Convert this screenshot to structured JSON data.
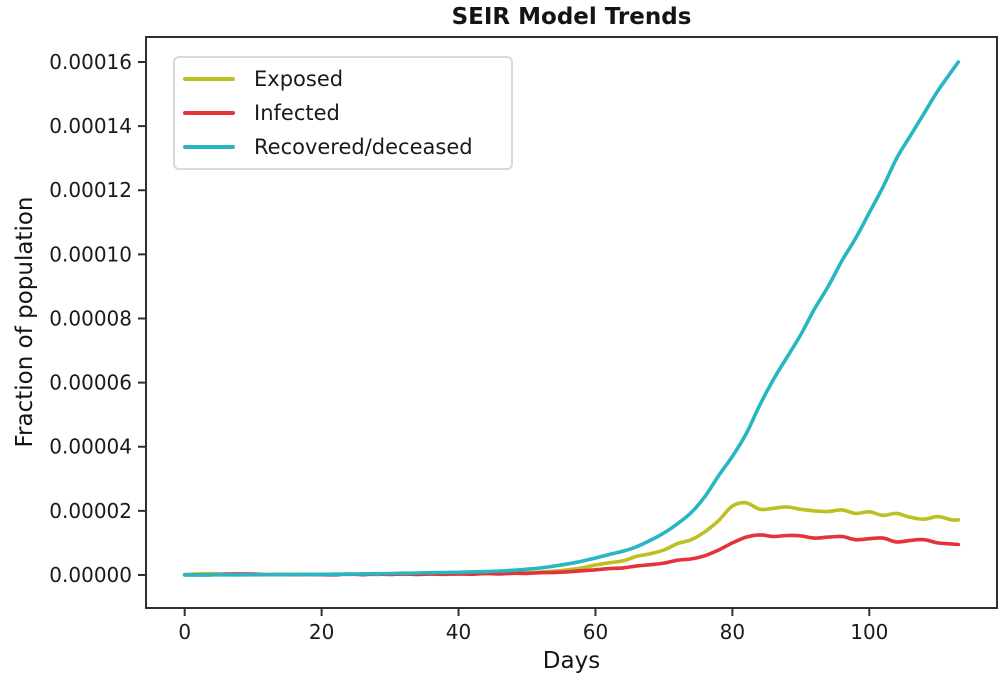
{
  "chart_data": {
    "type": "line",
    "title": "SEIR Model Trends",
    "xlabel": "Days",
    "ylabel": "Fraction of population",
    "grid": false,
    "legend_position": "upper left",
    "xlim": [
      -5.65,
      118.65
    ],
    "ylim": [
      -1.03e-05,
      0.0001678
    ],
    "xticks": [
      0,
      20,
      40,
      60,
      80,
      100
    ],
    "xtick_labels": [
      "0",
      "20",
      "40",
      "60",
      "80",
      "100"
    ],
    "yticks": [
      0,
      2e-05,
      4e-05,
      6e-05,
      8e-05,
      0.0001,
      0.00012,
      0.00014,
      0.00016
    ],
    "ytick_labels": [
      "0.00000",
      "0.00002",
      "0.00004",
      "0.00006",
      "0.00008",
      "0.00010",
      "0.00012",
      "0.00014",
      "0.00016"
    ],
    "value_scale": 1e-06,
    "value_scale_note": "series values are fractions of population in units of 1e-6",
    "x": [
      0,
      2,
      4,
      6,
      8,
      10,
      12,
      14,
      16,
      18,
      20,
      22,
      24,
      26,
      28,
      30,
      32,
      34,
      36,
      38,
      40,
      42,
      44,
      46,
      48,
      50,
      52,
      54,
      56,
      58,
      60,
      62,
      64,
      66,
      68,
      70,
      72,
      74,
      76,
      78,
      80,
      82,
      84,
      86,
      88,
      90,
      92,
      94,
      96,
      98,
      100,
      102,
      104,
      106,
      108,
      110,
      112,
      113
    ],
    "series": [
      {
        "name": "Exposed",
        "color": "#bcc020",
        "values_e6": [
          0.1,
          0.35,
          0.4,
          0.15,
          0.05,
          0.05,
          0.1,
          0.12,
          0.1,
          0.12,
          0.1,
          0.3,
          0.15,
          0.35,
          0.15,
          0.3,
          0.2,
          0.35,
          0.25,
          0.35,
          0.3,
          0.45,
          0.4,
          0.55,
          0.5,
          0.65,
          0.9,
          1.2,
          1.6,
          2.2,
          3.1,
          3.8,
          4.4,
          5.8,
          6.6,
          7.8,
          9.8,
          11,
          13.5,
          17,
          21.5,
          22.5,
          20.5,
          20.8,
          21.2,
          20.5,
          20,
          19.8,
          20.3,
          19.2,
          19.7,
          18.6,
          19.2,
          18,
          17.4,
          18.2,
          17.2,
          17.2
        ]
      },
      {
        "name": "Infected",
        "color": "#e5333b",
        "values_e6": [
          0.05,
          0,
          0.05,
          0.3,
          0.35,
          0.3,
          0.1,
          0.15,
          0.1,
          0.15,
          0.1,
          0.05,
          0.3,
          0.1,
          0.3,
          0.15,
          0.3,
          0.15,
          0.3,
          0.2,
          0.35,
          0.25,
          0.45,
          0.35,
          0.55,
          0.5,
          0.7,
          0.8,
          1,
          1.3,
          1.6,
          2,
          2.2,
          2.8,
          3.2,
          3.7,
          4.6,
          5,
          6,
          7.8,
          10,
          11.8,
          12.5,
          12,
          12.3,
          12.2,
          11.5,
          11.8,
          12,
          11,
          11.3,
          11.5,
          10.3,
          10.8,
          11,
          10,
          9.7,
          9.5
        ]
      },
      {
        "name": "Recovered/deceased",
        "color": "#27b6c3",
        "values_e6": [
          0.02,
          0.03,
          0.04,
          0.05,
          0.06,
          0.08,
          0.1,
          0.12,
          0.14,
          0.17,
          0.2,
          0.24,
          0.28,
          0.33,
          0.39,
          0.46,
          0.54,
          0.63,
          0.72,
          0.78,
          0.85,
          0.95,
          1.05,
          1.2,
          1.45,
          1.8,
          2.2,
          2.8,
          3.5,
          4.3,
          5.3,
          6.4,
          7.4,
          8.8,
          10.8,
          13.1,
          16,
          19.5,
          24.5,
          31,
          37,
          44,
          53,
          61,
          68,
          75,
          83,
          90,
          98,
          105,
          113,
          121,
          130,
          137,
          144,
          151,
          157,
          160
        ]
      }
    ]
  },
  "style": {
    "spine_color": "#2f2f2f",
    "tick_color": "#2f2f2f",
    "text_color": "#1a1a1a",
    "line_width": 3.6
  }
}
